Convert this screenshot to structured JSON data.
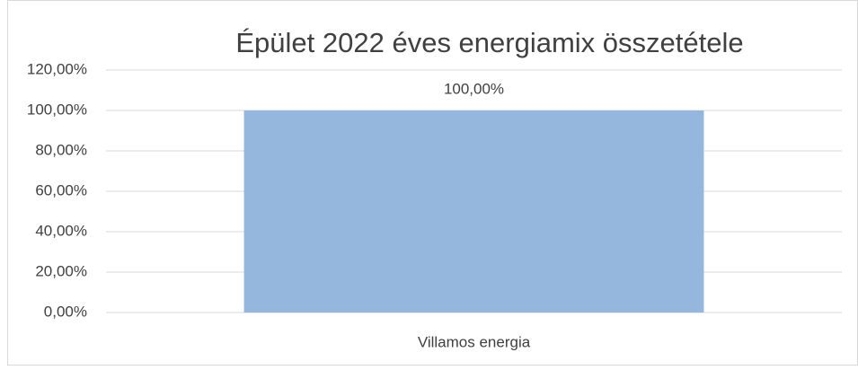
{
  "chart_data": {
    "type": "bar",
    "title": "Épület 2022 éves energiamix összetétele",
    "categories": [
      "Villamos energia"
    ],
    "values": [
      100
    ],
    "value_labels": [
      "100,00%"
    ],
    "color": "#95b7de",
    "ylim": [
      0,
      120
    ],
    "yticks": [
      {
        "value": 0,
        "label": "0,00%"
      },
      {
        "value": 20,
        "label": "20,00%"
      },
      {
        "value": 40,
        "label": "40,00%"
      },
      {
        "value": 60,
        "label": "60,00%"
      },
      {
        "value": 80,
        "label": "80,00%"
      },
      {
        "value": 100,
        "label": "100,00%"
      },
      {
        "value": 120,
        "label": "120,00%"
      }
    ],
    "grid": true
  }
}
